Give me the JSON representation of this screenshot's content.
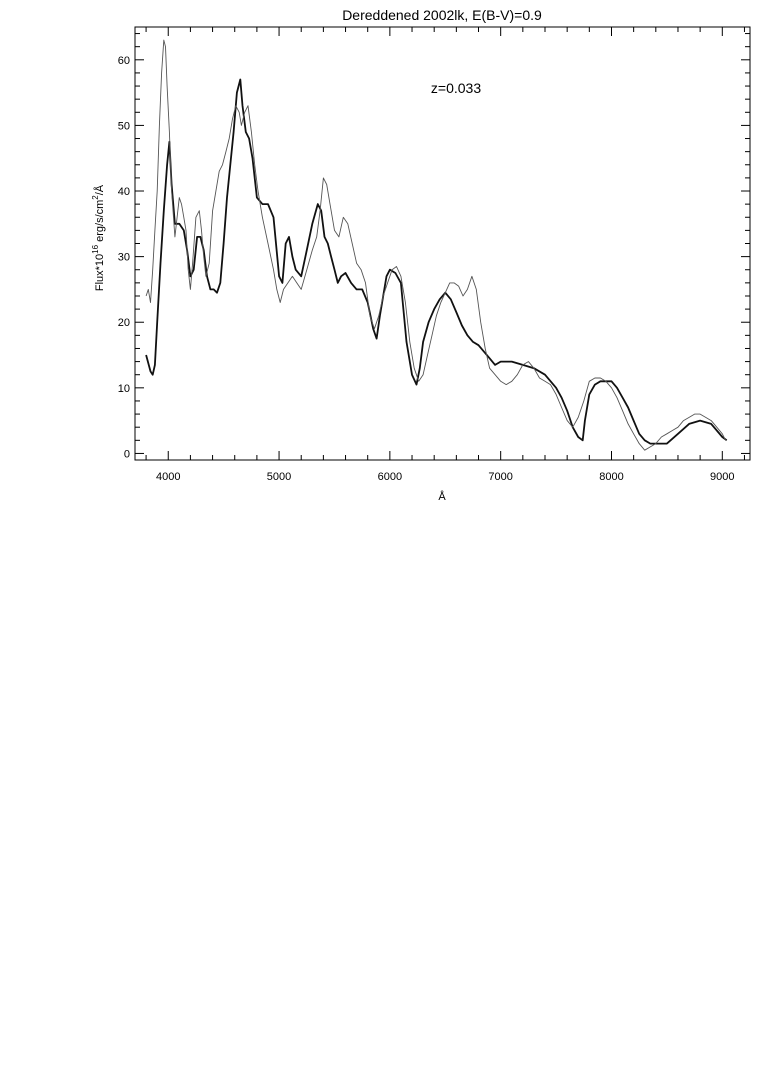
{
  "chart_data": {
    "type": "line",
    "title": "Dereddened 2002lk, E(B-V)=0.9",
    "xlabel": "Å",
    "ylabel": "Flux*10^16 erg/s/cm^2/Å",
    "ylabel_parts": {
      "base": "Flux*10",
      "exp1": "16",
      "mid": " erg/s/cm",
      "exp2": "2",
      "end": "/Å"
    },
    "annotation": "z=0.033",
    "xlim": [
      3700,
      9250
    ],
    "ylim": [
      -1,
      65
    ],
    "xticks": [
      4000,
      5000,
      6000,
      7000,
      8000,
      9000
    ],
    "yticks": [
      0,
      10,
      20,
      30,
      40,
      50,
      60
    ],
    "xtick_labels": [
      "4000",
      "5000",
      "6000",
      "7000",
      "8000",
      "9000"
    ],
    "ytick_labels": [
      "0",
      "10",
      "20",
      "30",
      "40",
      "50",
      "60"
    ],
    "grid": false,
    "series": [
      {
        "style": "thick-solid",
        "x": [
          3800,
          3840,
          3860,
          3880,
          3900,
          3930,
          3960,
          3990,
          4010,
          4030,
          4060,
          4100,
          4140,
          4170,
          4200,
          4230,
          4260,
          4290,
          4320,
          4350,
          4380,
          4410,
          4440,
          4470,
          4500,
          4530,
          4560,
          4590,
          4620,
          4650,
          4670,
          4700,
          4730,
          4760,
          4800,
          4850,
          4900,
          4950,
          5000,
          5030,
          5060,
          5090,
          5120,
          5150,
          5200,
          5250,
          5300,
          5350,
          5380,
          5410,
          5440,
          5470,
          5500,
          5530,
          5560,
          5600,
          5650,
          5700,
          5750,
          5800,
          5850,
          5880,
          5910,
          5940,
          5970,
          6000,
          6050,
          6100,
          6150,
          6200,
          6240,
          6270,
          6300,
          6350,
          6400,
          6450,
          6500,
          6550,
          6600,
          6650,
          6700,
          6750,
          6800,
          6850,
          6900,
          6950,
          7000,
          7100,
          7200,
          7300,
          7400,
          7500,
          7550,
          7600,
          7650,
          7700,
          7740,
          7760,
          7800,
          7850,
          7900,
          7950,
          8000,
          8050,
          8100,
          8150,
          8200,
          8250,
          8300,
          8350,
          8400,
          8500,
          8600,
          8700,
          8800,
          8900,
          8950,
          9000,
          9040
        ],
        "y": [
          15,
          12.5,
          12,
          13.5,
          20,
          29,
          37,
          44,
          47.5,
          41,
          35,
          35,
          34,
          31,
          27,
          28,
          33,
          33,
          31,
          27,
          25,
          25,
          24.5,
          26,
          32,
          39,
          44,
          49,
          55,
          57,
          53,
          49,
          48,
          45,
          39,
          38,
          38,
          36,
          27,
          26,
          32,
          33,
          30,
          28,
          27,
          31,
          35,
          38,
          37,
          33,
          32,
          30,
          28,
          26,
          27,
          27.5,
          26,
          25,
          25,
          23,
          19,
          17.5,
          21,
          24,
          27,
          28,
          27.5,
          26,
          17,
          12,
          10.5,
          13,
          17,
          20,
          22,
          23.5,
          24.5,
          23.5,
          21.5,
          19.5,
          18,
          17,
          16.5,
          15.5,
          14.5,
          13.5,
          14,
          14,
          13.5,
          13,
          12,
          10,
          8.5,
          6.5,
          4,
          2.5,
          2,
          5,
          9,
          10.5,
          11,
          11,
          11,
          10,
          8.5,
          7,
          5,
          3,
          2,
          1.5,
          1.5,
          1.5,
          3,
          4.5,
          5,
          4.5,
          3.5,
          2.5,
          2
        ]
      },
      {
        "style": "thin-jagged",
        "x": [
          3800,
          3820,
          3840,
          3860,
          3880,
          3900,
          3920,
          3940,
          3960,
          3975,
          3990,
          4010,
          4030,
          4060,
          4080,
          4100,
          4120,
          4140,
          4160,
          4180,
          4200,
          4220,
          4250,
          4280,
          4300,
          4320,
          4340,
          4370,
          4400,
          4430,
          4460,
          4490,
          4520,
          4550,
          4580,
          4610,
          4640,
          4660,
          4690,
          4720,
          4750,
          4780,
          4810,
          4850,
          4900,
          4950,
          4980,
          5010,
          5040,
          5080,
          5120,
          5160,
          5200,
          5250,
          5300,
          5340,
          5370,
          5400,
          5430,
          5460,
          5500,
          5540,
          5580,
          5620,
          5660,
          5700,
          5740,
          5780,
          5820,
          5860,
          5900,
          5940,
          5980,
          6020,
          6060,
          6100,
          6140,
          6180,
          6220,
          6260,
          6300,
          6340,
          6380,
          6420,
          6460,
          6500,
          6540,
          6580,
          6620,
          6660,
          6700,
          6740,
          6780,
          6820,
          6860,
          6900,
          6950,
          7000,
          7050,
          7100,
          7150,
          7200,
          7250,
          7300,
          7350,
          7400,
          7450,
          7500,
          7550,
          7600,
          7650,
          7700,
          7750,
          7800,
          7850,
          7900,
          7950,
          8000,
          8050,
          8100,
          8150,
          8200,
          8250,
          8300,
          8350,
          8400,
          8450,
          8500,
          8550,
          8600,
          8650,
          8700,
          8750,
          8800,
          8850,
          8900,
          8950,
          9000,
          9030
        ],
        "y": [
          24,
          25,
          23,
          28,
          34,
          40,
          50,
          58,
          63,
          62,
          56,
          49,
          40,
          33,
          36,
          39,
          38,
          36,
          34,
          28,
          25,
          29,
          36,
          37,
          34,
          30,
          27,
          29,
          37,
          40,
          43,
          44,
          46,
          48,
          51,
          53,
          52,
          50,
          52,
          53,
          49,
          44,
          40,
          36,
          32,
          28,
          25,
          23,
          25,
          26,
          27,
          26,
          25,
          28,
          31,
          33,
          37,
          42,
          41,
          38,
          34,
          33,
          36,
          35,
          32,
          29,
          28,
          26,
          21,
          19,
          21,
          24,
          26,
          28,
          28.5,
          27,
          23,
          17,
          13,
          11,
          12,
          15,
          18,
          21,
          23,
          24.5,
          26,
          26,
          25.5,
          24,
          25,
          27,
          25,
          20,
          16,
          13,
          12,
          11,
          10.5,
          11,
          12,
          13.5,
          14,
          13,
          11.5,
          11,
          10.5,
          9,
          7,
          5,
          4,
          5.5,
          8,
          11,
          11.5,
          11.5,
          11,
          10,
          8.5,
          6.5,
          4.5,
          3,
          1.5,
          0.5,
          1,
          1.5,
          2.5,
          3,
          3.5,
          4,
          5,
          5.5,
          6,
          6,
          5.5,
          5,
          4,
          3,
          2
        ]
      }
    ]
  }
}
